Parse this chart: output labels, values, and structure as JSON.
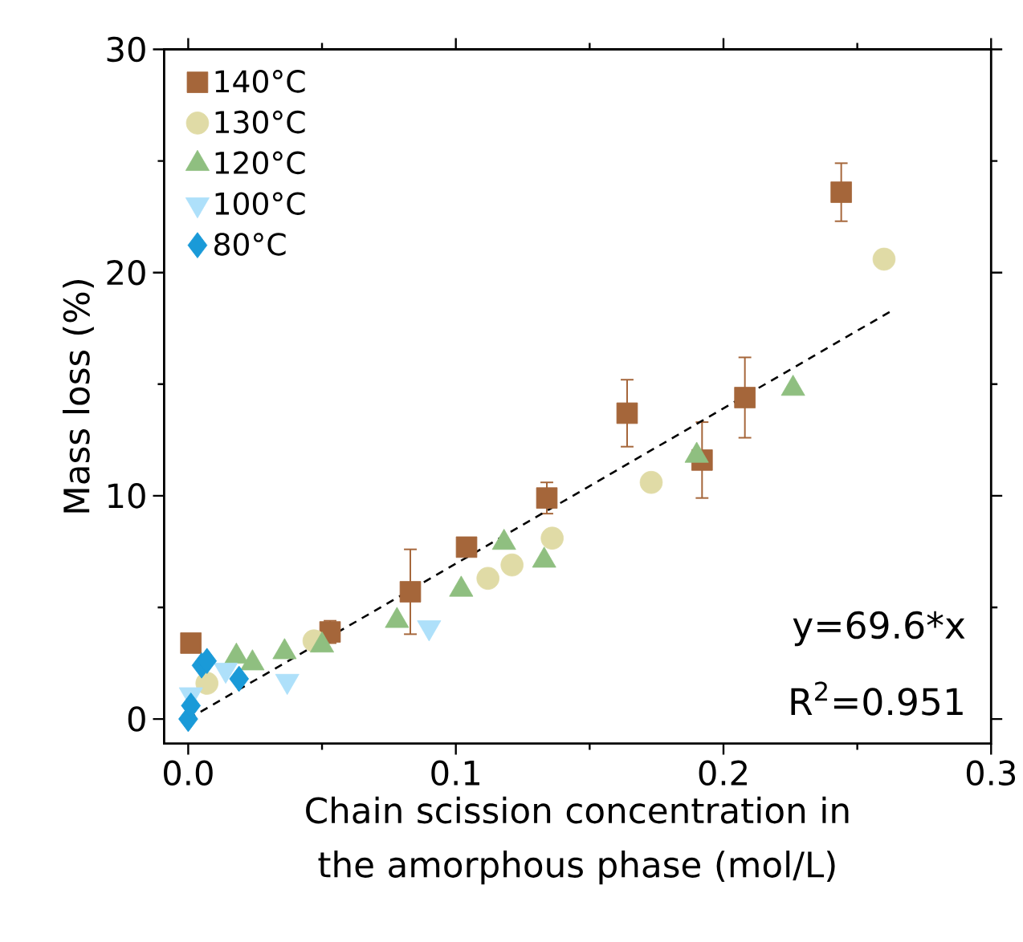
{
  "chart_data": {
    "type": "scatter",
    "xlabel": "Chain scission concentration in the amorphous phase (mol/L)",
    "ylabel": "Mass loss (%)",
    "xlim": [
      -0.009,
      0.3
    ],
    "ylim": [
      -1.1,
      30
    ],
    "xticks": [
      {
        "value": 0,
        "label": "0.0"
      },
      {
        "value": 0.05,
        "label": null
      },
      {
        "value": 0.1,
        "label": "0.1"
      },
      {
        "value": 0.15,
        "label": null
      },
      {
        "value": 0.2,
        "label": "0.2"
      },
      {
        "value": 0.25,
        "label": null
      },
      {
        "value": 0.3,
        "label": "0.3"
      }
    ],
    "yticks": [
      0,
      {
        "value": 5,
        "label": null
      },
      10,
      {
        "value": 15,
        "label": null
      },
      20,
      {
        "value": 25,
        "label": null
      },
      30
    ],
    "legend": "top left",
    "grid": false,
    "series": [
      {
        "name": "140°C",
        "color": "#a5663a",
        "marker": "square",
        "x": [
          0.001,
          0.053,
          0.083,
          0.104,
          0.134,
          0.164,
          0.192,
          0.208,
          0.244
        ],
        "values": [
          3.4,
          3.9,
          5.7,
          7.7,
          9.9,
          13.7,
          11.6,
          14.4,
          23.6
        ],
        "errors": [
          null,
          0.5,
          1.9,
          0.4,
          0.7,
          1.5,
          1.7,
          1.8,
          1.3
        ]
      },
      {
        "name": "130°C",
        "color": "#e0dba6",
        "marker": "circle",
        "x": [
          0.007,
          0.047,
          0.112,
          0.121,
          0.136,
          0.173,
          0.26
        ],
        "values": [
          1.6,
          3.5,
          6.3,
          6.9,
          8.1,
          10.6,
          20.6
        ]
      },
      {
        "name": "120°C",
        "color": "#8fbf80",
        "marker": "triangle",
        "x": [
          0.018,
          0.024,
          0.036,
          0.05,
          0.078,
          0.102,
          0.118,
          0.133,
          0.19,
          0.226
        ],
        "values": [
          2.8,
          2.5,
          3.0,
          3.3,
          4.4,
          5.8,
          7.9,
          7.1,
          11.8,
          14.8
        ]
      },
      {
        "name": "100°C",
        "color": "#aee0fa",
        "marker": "triangle-down",
        "x": [
          0.001,
          0.014,
          0.037,
          0.09
        ],
        "values": [
          1.1,
          2.2,
          1.7,
          4.1
        ]
      },
      {
        "name": "80°C",
        "color": "#1a9ad8",
        "marker": "diamond",
        "x": [
          0.0,
          0.001,
          0.005,
          0.007,
          0.019
        ],
        "values": [
          0.0,
          0.6,
          2.4,
          2.6,
          1.8
        ]
      },
      {
        "type": "line",
        "color": "#000000",
        "marker": "none",
        "line_style": "dashed",
        "x": [
          0,
          0.263
        ],
        "values": [
          0,
          18.3
        ]
      }
    ],
    "annotations": [
      "y=69.6*x",
      "R$^{2}$=0.951"
    ]
  }
}
